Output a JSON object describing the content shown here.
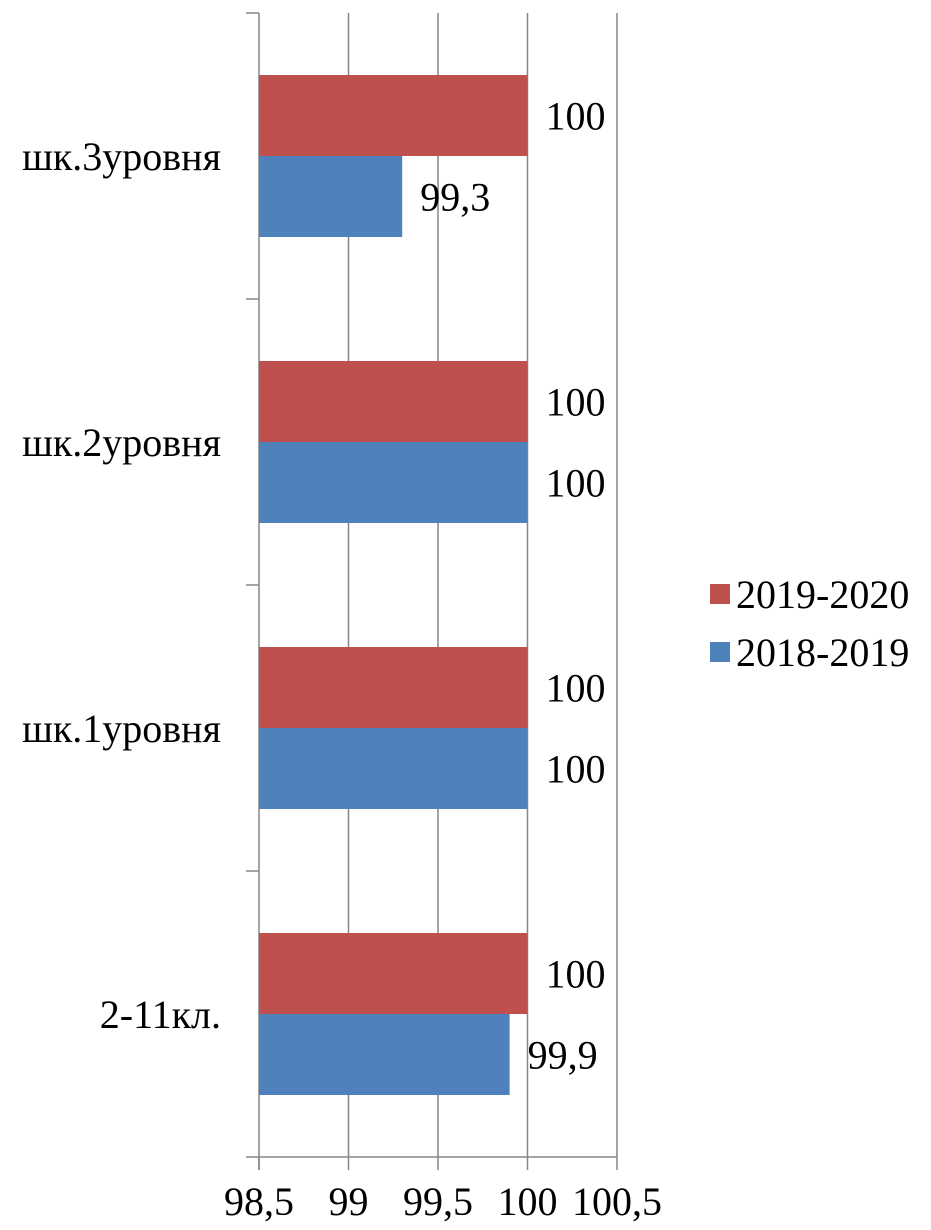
{
  "chart_data": {
    "type": "bar",
    "orientation": "horizontal",
    "categories": [
      "шк.3уровня",
      "шк.2уровня",
      "шк.1уровня",
      "2-11кл."
    ],
    "series": [
      {
        "name": "2019-2020",
        "color": "#c0504d",
        "values": [
          100,
          100,
          100,
          100
        ],
        "labels": [
          "100",
          "100",
          "100",
          "100"
        ]
      },
      {
        "name": "2018-2019",
        "color": "#4f81bd",
        "values": [
          99.3,
          100,
          100,
          99.9
        ],
        "labels": [
          "99,3",
          "100",
          "100",
          "99,9"
        ]
      }
    ],
    "xlim": [
      98.5,
      100.5
    ],
    "xticks": [
      98.5,
      99,
      99.5,
      100,
      100.5
    ],
    "xtick_labels": [
      "98,5",
      "99",
      "99,5",
      "100",
      "100,5"
    ],
    "grid": true,
    "legend_position": "right"
  }
}
